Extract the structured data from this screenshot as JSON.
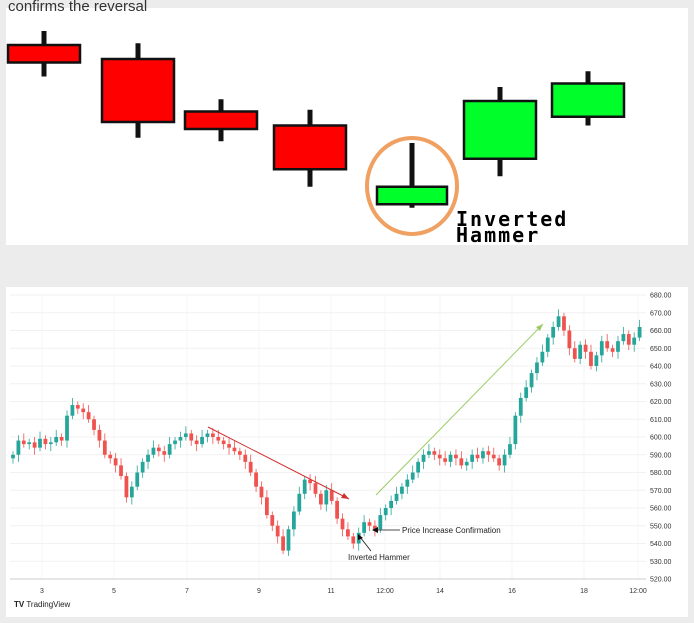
{
  "top": {
    "caption": "confirms the reversal",
    "label_line1": "Inverted",
    "label_line2": "Hammer",
    "colors": {
      "bear": "#ff0000",
      "bull": "#00ff2a",
      "wick": "#111111",
      "highlight": "#f0a060"
    }
  },
  "chart_data": [
    {
      "type": "candlestick",
      "title": "",
      "candles": [
        {
          "color": "red",
          "open": 9.6,
          "close": 8.6,
          "high": 10.4,
          "low": 7.8
        },
        {
          "color": "red",
          "open": 8.8,
          "close": 5.2,
          "high": 9.7,
          "low": 4.3
        },
        {
          "color": "red",
          "open": 5.8,
          "close": 4.8,
          "high": 6.5,
          "low": 4.1
        },
        {
          "color": "red",
          "open": 5.0,
          "close": 2.5,
          "high": 5.9,
          "low": 1.5
        },
        {
          "color": "green",
          "open": 0.5,
          "close": 1.5,
          "high": 4.0,
          "low": 0.3
        },
        {
          "color": "green",
          "open": 3.1,
          "close": 6.4,
          "high": 7.2,
          "low": 2.1
        },
        {
          "color": "green",
          "open": 5.5,
          "close": 7.4,
          "high": 8.1,
          "low": 5.0
        }
      ],
      "highlight_index": 4,
      "annotation": "Inverted Hammer"
    },
    {
      "type": "candlestick",
      "title": "",
      "ylim": [
        520,
        680
      ],
      "y_ticks": [
        "680.00",
        "670.00",
        "660.00",
        "650.00",
        "640.00",
        "630.00",
        "620.00",
        "610.00",
        "600.00",
        "590.00",
        "580.00",
        "570.00",
        "560.00",
        "550.00",
        "540.00",
        "530.00",
        "520.00"
      ],
      "x_ticks": [
        "3",
        "5",
        "7",
        "9",
        "11",
        "12:00",
        "14",
        "16",
        "18",
        "12:00"
      ],
      "closes": [
        590,
        598,
        596,
        597,
        594,
        599,
        596,
        597,
        600,
        598,
        612,
        618,
        616,
        614,
        610,
        604,
        598,
        590,
        588,
        584,
        578,
        566,
        572,
        580,
        586,
        590,
        594,
        592,
        590,
        596,
        598,
        600,
        602,
        598,
        596,
        600,
        602,
        600,
        598,
        596,
        594,
        592,
        590,
        586,
        580,
        572,
        566,
        556,
        550,
        544,
        536,
        548,
        558,
        568,
        576,
        574,
        568,
        562,
        570,
        564,
        554,
        548,
        544,
        540,
        546,
        552,
        550,
        548,
        556,
        560,
        564,
        568,
        572,
        576,
        580,
        586,
        590,
        592,
        590,
        588,
        586,
        590,
        588,
        584,
        586,
        590,
        588,
        592,
        590,
        588,
        584,
        590,
        596,
        612,
        622,
        628,
        636,
        642,
        648,
        656,
        662,
        668,
        660,
        650,
        644,
        652,
        648,
        640,
        646,
        654,
        650,
        648,
        654,
        658,
        652,
        656,
        662
      ],
      "annotations": [
        "Price Increase Confirmation",
        "Inverted Hammer"
      ],
      "watermark": "TradingView",
      "colors": {
        "up": "#26a69a",
        "down": "#ef5350",
        "down_trend": "#d32f2f",
        "up_trend": "#8bc34a"
      }
    }
  ]
}
